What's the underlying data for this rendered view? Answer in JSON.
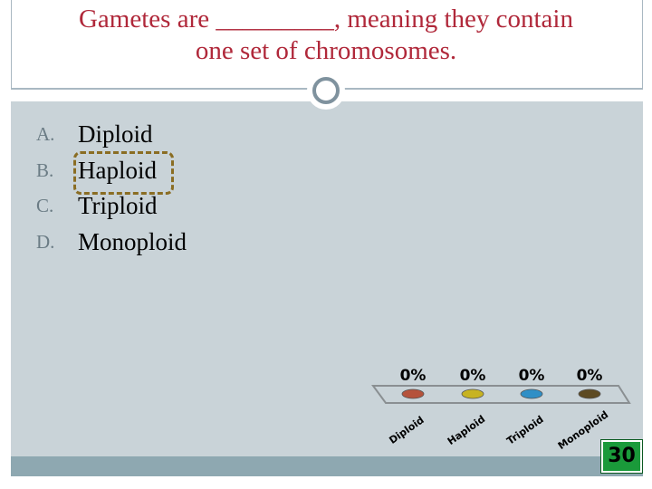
{
  "slide": {
    "title_line1": "Gametes are _________, meaning they contain",
    "title_line2": "one set of chromosomes."
  },
  "options": [
    {
      "letter": "A.",
      "text": "Diploid"
    },
    {
      "letter": "B.",
      "text": "Haploid"
    },
    {
      "letter": "C.",
      "text": "Triploid"
    },
    {
      "letter": "D.",
      "text": "Monoploid"
    }
  ],
  "timer": {
    "value": "30",
    "color": "#1a9a3a"
  },
  "colors": {
    "title": "#b0283a",
    "content_bg": "#c9d3d8",
    "correct_outline": "#8a6d23"
  },
  "chart_data": {
    "type": "bar",
    "categories": [
      "Diploid",
      "Haploid",
      "Triploid",
      "Monoploid"
    ],
    "values": [
      0,
      0,
      0,
      0
    ],
    "value_labels": [
      "0%",
      "0%",
      "0%",
      "0%"
    ],
    "colors": [
      "#b5523b",
      "#c7b321",
      "#2f8fc6",
      "#5d4a22"
    ],
    "title": "",
    "xlabel": "",
    "ylabel": "",
    "ylim": [
      0,
      100
    ],
    "grid": false
  }
}
